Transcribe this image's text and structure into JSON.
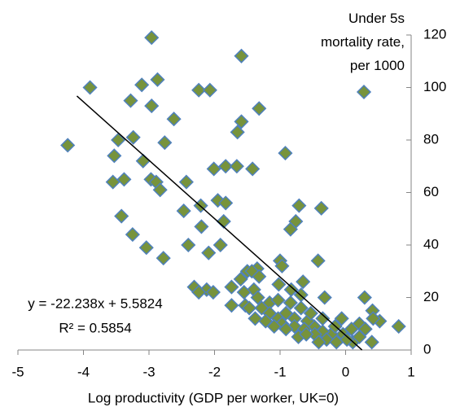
{
  "chart_data": {
    "type": "scatter",
    "xlabel": "Log productivity (GDP per worker, UK=0)",
    "xlim": [
      -5,
      1
    ],
    "xticks": [
      -5,
      -4,
      -3,
      -2,
      -1,
      0,
      1
    ],
    "ylim": [
      0,
      120
    ],
    "yticks": [
      0,
      20,
      40,
      60,
      80,
      100,
      120
    ],
    "grid": false,
    "legend": "top-right",
    "x": [
      -2.96,
      -1.59,
      -3.9,
      -2.87,
      -3.11,
      -2.24,
      -2.07,
      -3.28,
      -2.96,
      -1.32,
      -2.62,
      -1.59,
      -1.65,
      -3.24,
      -3.47,
      -2.76,
      -4.24,
      -0.92,
      -3.53,
      -3.09,
      -1.83,
      -1.66,
      -2.01,
      -1.42,
      -2.97,
      -3.38,
      -3.55,
      -2.89,
      -2.43,
      -2.83,
      -1.95,
      -1.83,
      -2.21,
      -2.47,
      -0.71,
      -0.37,
      -3.42,
      -0.76,
      -0.84,
      -2.2,
      -1.86,
      -3.25,
      -1.91,
      -2.4,
      -3.04,
      -2.09,
      -2.78,
      -0.42,
      -1.0,
      -0.97,
      -1.5,
      -1.35,
      -1.43,
      -1.6,
      -0.65,
      -1.32,
      -1.02,
      -1.74,
      -2.31,
      -2.12,
      -2.24,
      -2.02,
      -1.4,
      -0.83,
      -0.68,
      -1.55,
      -1.34,
      -0.32,
      0.29,
      -1.74,
      -1.53,
      -1.16,
      0.41,
      0.81,
      0.52,
      -0.06,
      0.21,
      0.42,
      0.4,
      0.11,
      -0.04,
      -0.22,
      -0.35,
      -0.48,
      -0.58,
      -0.78,
      -0.91,
      -1.03,
      -1.16,
      -1.28,
      -1.38,
      -1.22,
      -0.97,
      -0.78,
      -0.63,
      -0.47,
      -0.29,
      -0.14,
      0.02,
      0.21,
      0.3,
      0.09,
      -0.16,
      -0.35,
      -0.53,
      -0.68,
      -0.84,
      -1.03,
      -1.47,
      -1.09,
      -0.91,
      -0.72,
      -0.6,
      -0.41
    ],
    "series": [
      {
        "name": "Under 5s mortality rate, per 1000",
        "color": "#77933c",
        "edgecolor": "#4f81bd",
        "values": [
          119,
          112,
          100,
          103,
          101,
          99,
          99,
          95,
          93,
          92,
          88,
          87,
          83,
          81,
          80,
          79,
          78,
          75,
          74,
          72,
          70,
          70,
          69,
          69,
          65,
          65,
          64,
          64,
          64,
          61,
          57,
          56,
          55,
          53,
          55,
          54,
          51,
          49,
          46,
          47,
          49,
          44,
          40,
          40,
          39,
          37,
          35,
          34,
          34,
          32,
          30,
          31,
          30,
          27,
          26,
          28,
          25,
          24,
          24,
          23,
          22,
          22,
          23,
          23,
          21,
          22,
          20,
          20,
          20,
          17,
          17,
          18,
          15,
          9,
          11,
          12,
          10,
          12,
          3,
          3,
          6,
          6,
          7,
          9,
          11,
          12,
          14,
          12,
          14,
          16,
          12,
          11,
          10,
          9,
          8,
          6,
          4,
          3,
          4,
          5,
          8,
          8,
          9,
          12,
          14,
          16,
          18,
          19,
          16,
          9,
          8,
          5,
          6,
          3
        ]
      }
    ],
    "trendline": {
      "slope": -22.238,
      "intercept": 5.5824,
      "xrange": [
        -4.1,
        0.25
      ],
      "color": "#000000",
      "equation": "y = -22.238x + 5.5824",
      "r_squared": "R² = 0.5854"
    }
  }
}
